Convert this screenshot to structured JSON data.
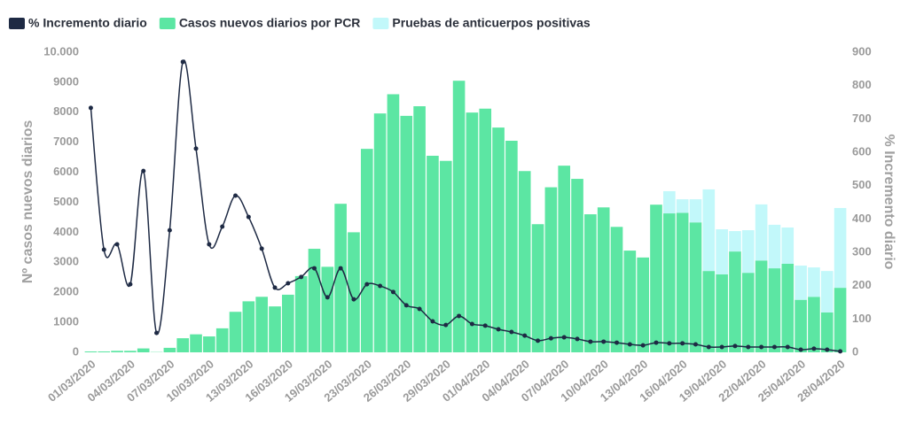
{
  "chart_data": {
    "type": "bar-line",
    "categories": [
      "01/03/2020",
      null,
      null,
      "04/03/2020",
      null,
      null,
      "07/03/2020",
      null,
      null,
      "10/03/2020",
      null,
      null,
      "13/03/2020",
      null,
      null,
      "16/03/2020",
      null,
      null,
      "19/03/2020",
      null,
      null,
      "23/03/2020",
      null,
      null,
      "26/03/2020",
      null,
      null,
      "29/03/2020",
      null,
      null,
      "01/04/2020",
      null,
      null,
      "04/04/2020",
      null,
      null,
      "07/04/2020",
      null,
      null,
      "10/04/2020",
      null,
      null,
      "13/04/2020",
      null,
      null,
      "16/04/2020",
      null,
      null,
      "19/04/2020",
      null,
      null,
      "22/04/2020",
      null,
      null,
      "25/04/2020",
      null,
      null,
      "28/04/2020"
    ],
    "series": [
      {
        "name": "% Incremento diario",
        "color": "#1e2a44",
        "axis": "y2",
        "kind": "line",
        "values": [
          733,
          308,
          324,
          204,
          544,
          58,
          366,
          871,
          611,
          324,
          377,
          470,
          406,
          311,
          194,
          207,
          226,
          252,
          165,
          252,
          159,
          204,
          199,
          181,
          141,
          130,
          93,
          82,
          109,
          85,
          80,
          69,
          61,
          50,
          35,
          42,
          45,
          40,
          32,
          32,
          29,
          24,
          21,
          29,
          27,
          27,
          24,
          16,
          16,
          19,
          16,
          16,
          16,
          16,
          8,
          11,
          8,
          3
        ]
      },
      {
        "name": "Casos nuevos diarios por PCR",
        "color": "#5ce6a3",
        "kind": "bar",
        "values": [
          30,
          30,
          50,
          50,
          130,
          10,
          150,
          470,
          600,
          530,
          800,
          1350,
          1700,
          1850,
          1530,
          1920,
          2540,
          3450,
          2850,
          4950,
          4000,
          6780,
          7960,
          8600,
          7880,
          8200,
          6550,
          6380,
          9050,
          7990,
          8120,
          7490,
          7050,
          6040,
          4270,
          5500,
          6220,
          5780,
          4600,
          4830,
          4180,
          3390,
          3160,
          4920,
          4630,
          4650,
          4330,
          2710,
          2600,
          3360,
          2650,
          3060,
          2800,
          2950,
          1750,
          1850,
          1330,
          2150
        ]
      },
      {
        "name": "Pruebas de anticuerpos positivas",
        "color": "#c2f8fa",
        "kind": "bar",
        "values": [
          0,
          0,
          0,
          0,
          0,
          0,
          0,
          0,
          0,
          0,
          0,
          0,
          0,
          0,
          0,
          0,
          0,
          0,
          0,
          0,
          0,
          0,
          0,
          0,
          0,
          0,
          0,
          0,
          0,
          0,
          0,
          0,
          0,
          0,
          0,
          0,
          0,
          0,
          0,
          0,
          0,
          0,
          0,
          0,
          740,
          450,
          770,
          2720,
          1500,
          680,
          1420,
          1870,
          1450,
          1210,
          1140,
          980,
          1380,
          2660
        ]
      }
    ],
    "y_label": "Nº casos nuevos diarios",
    "y2_label": "% Incremento diario",
    "ylim": [
      0,
      10000
    ],
    "yticks": [
      0,
      1000,
      2000,
      3000,
      4000,
      5000,
      6000,
      7000,
      8000,
      9000,
      {
        "value": 10000,
        "label": "10.000"
      }
    ],
    "y2lim": [
      0,
      900
    ],
    "y2ticks": [
      0,
      100,
      200,
      300,
      400,
      500,
      600,
      700,
      800,
      900
    ]
  }
}
